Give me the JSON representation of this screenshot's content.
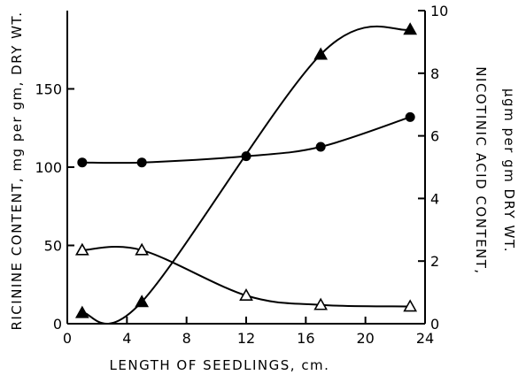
{
  "chart_data": {
    "type": "line",
    "title": "",
    "xlabel": "LENGTH OF SEEDLINGS, cm.",
    "ylabel_left": "RICININE CONTENT, mg per gm, DRY WT.",
    "ylabel_right_line1": "NICOTINIC ACID CONTENT,",
    "ylabel_right_line2": "μgm per gm DRY WT.",
    "xlim": [
      0,
      24
    ],
    "ylim_left": [
      0,
      200
    ],
    "ylim_right": [
      0,
      10
    ],
    "x_ticks": [
      0,
      4,
      8,
      12,
      16,
      20,
      24
    ],
    "y_left_ticks": [
      0,
      50,
      100,
      150
    ],
    "y_right_ticks": [
      0,
      2,
      4,
      6,
      8,
      10
    ],
    "grid": false,
    "legend": "none",
    "series": [
      {
        "marker": "filled-circle",
        "axis": "left",
        "x": [
          1,
          5,
          12,
          17,
          23
        ],
        "y": [
          103,
          103,
          107,
          113,
          132
        ]
      },
      {
        "marker": "open-triangle",
        "axis": "left",
        "x": [
          1,
          5,
          12,
          17,
          23
        ],
        "y": [
          47,
          47,
          18,
          12,
          11
        ]
      },
      {
        "marker": "filled-triangle",
        "axis": "right",
        "x": [
          1,
          5,
          17,
          23
        ],
        "y": [
          0.35,
          0.7,
          8.6,
          9.4
        ]
      }
    ]
  }
}
